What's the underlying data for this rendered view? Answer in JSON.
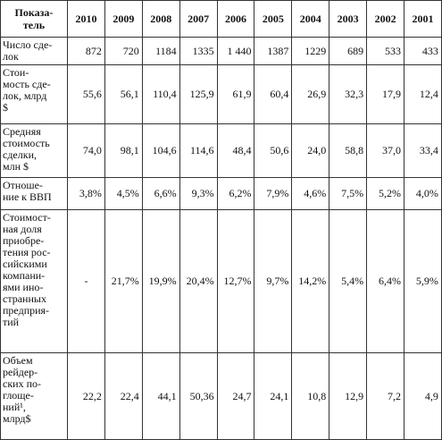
{
  "table": {
    "header": {
      "indicator": "Показа-\nтель",
      "years": [
        "2010",
        "2009",
        "2008",
        "2007",
        "2006",
        "2005",
        "2004",
        "2003",
        "2002",
        "2001"
      ]
    },
    "rows": [
      {
        "label": "Число сде-\nлок",
        "values": [
          "872",
          "720",
          "1184",
          "1335",
          "1 440",
          "1387",
          "1229",
          "689",
          "533",
          "433"
        ]
      },
      {
        "label": "Стои-\nмость сде-\nлок, млрд\n$",
        "values": [
          "55,6",
          "56,1",
          "110,4",
          "125,9",
          "61,9",
          "60,4",
          "26,9",
          "32,3",
          "17,9",
          "12,4"
        ]
      },
      {
        "label": "Средняя\nстоимость\nсделки,\nмлн $",
        "values": [
          "74,0",
          "98,1",
          "104,6",
          "114,6",
          "48,4",
          "50,6",
          "24,0",
          "58,8",
          "37,0",
          "33,4"
        ]
      },
      {
        "label": "Отноше-\nние к ВВП",
        "values": [
          "3,8%",
          "4,5%",
          "6,6%",
          "9,3%",
          "6,2%",
          "7,9%",
          "4,6%",
          "7,5%",
          "5,2%",
          "4,0%"
        ]
      },
      {
        "label": "Стоимост-\nная доля\nприобре-\nтения рос-\nсийскими\nкомпани-\nями ино-\nстранных\nпредприя-\nтий",
        "values": [
          "-",
          "21,7%",
          "19,9%",
          "20,4%",
          "12,7%",
          "9,7%",
          "14,2%",
          "5,4%",
          "6,4%",
          "5,9%"
        ]
      },
      {
        "label": "Объем\nрейдер-\nских по-\nглоще-\nний¹,\nмлрд$",
        "values": [
          "22,2",
          "22,4",
          "44,1",
          "50,36",
          "24,7",
          "24,1",
          "10,8",
          "12,9",
          "7,2",
          "4,9"
        ]
      }
    ]
  }
}
